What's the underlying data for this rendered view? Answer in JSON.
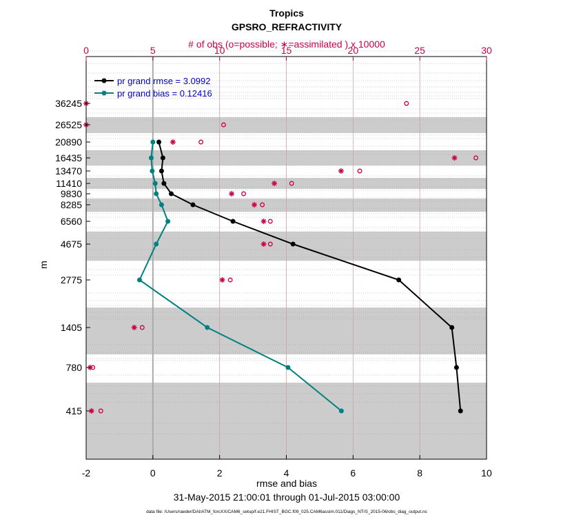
{
  "chart_data": {
    "type": "line",
    "title": "Tropics",
    "subtitle": "GPSRO_REFRACTIVITY",
    "top_axis_label": "# of obs (o=possible; ∗=assimilated ) x 10000",
    "xlabel": "rmse and bias",
    "ylabel": "m",
    "date_range": "31-May-2015 21:00:01 through 01-Jul-2015 03:00:00",
    "footnote": "data file: /Users/raeder/DAI/ATM_forcXX/CAM6_setup/f.e21.FHIST_BGC.f09_025.CAM6assim.011/Diags_NTrS_2015-06/obs_diag_output.nc",
    "xlim": [
      -2,
      10
    ],
    "xticks": [
      "-2",
      "0",
      "2",
      "4",
      "6",
      "8",
      "10"
    ],
    "top_xlim": [
      0,
      30
    ],
    "top_xticks": [
      "0",
      "5",
      "10",
      "15",
      "20",
      "25",
      "30"
    ],
    "y_levels": [
      {
        "label": "36245"
      },
      {
        "label": "26525"
      },
      {
        "label": "20890"
      },
      {
        "label": "16435"
      },
      {
        "label": "13470"
      },
      {
        "label": "11410"
      },
      {
        "label": "9830"
      },
      {
        "label": "8285"
      },
      {
        "label": "6560"
      },
      {
        "label": "4675"
      },
      {
        "label": "2775"
      },
      {
        "label": "1405"
      },
      {
        "label": "780"
      },
      {
        "label": "415"
      }
    ],
    "series": [
      {
        "name": "pr grand rmse = 3.0992",
        "color": "#000000",
        "points": [
          {
            "level": "20890",
            "x": 0.18
          },
          {
            "level": "16435",
            "x": 0.3
          },
          {
            "level": "13470",
            "x": 0.26
          },
          {
            "level": "11410",
            "x": 0.33
          },
          {
            "level": "9830",
            "x": 0.55
          },
          {
            "level": "8285",
            "x": 1.2
          },
          {
            "level": "6560",
            "x": 2.4
          },
          {
            "level": "4675",
            "x": 4.2
          },
          {
            "level": "2775",
            "x": 7.37
          },
          {
            "level": "1405",
            "x": 8.96
          },
          {
            "level": "780",
            "x": 9.1
          },
          {
            "level": "415",
            "x": 9.22
          }
        ]
      },
      {
        "name": "pr grand bias = 0.12416",
        "color": "#008080",
        "points": [
          {
            "level": "20890",
            "x": 0.0
          },
          {
            "level": "16435",
            "x": -0.05
          },
          {
            "level": "13470",
            "x": -0.02
          },
          {
            "level": "11410",
            "x": 0.07
          },
          {
            "level": "9830",
            "x": 0.1
          },
          {
            "level": "8285",
            "x": 0.26
          },
          {
            "level": "6560",
            "x": 0.45
          },
          {
            "level": "4675",
            "x": 0.1
          },
          {
            "level": "2775",
            "x": -0.4
          },
          {
            "level": "1405",
            "x": 1.63
          },
          {
            "level": "780",
            "x": 4.05
          },
          {
            "level": "415",
            "x": 5.65
          }
        ]
      }
    ],
    "obs_counts": {
      "color": "#cc0044",
      "possible": [
        {
          "level": "36245",
          "count": 24.0
        },
        {
          "level": "26525",
          "count": 10.3
        },
        {
          "level": "20890",
          "count": 8.6
        },
        {
          "level": "16435",
          "count": 29.2
        },
        {
          "level": "13470",
          "count": 20.5
        },
        {
          "level": "11410",
          "count": 15.4
        },
        {
          "level": "9830",
          "count": 11.8
        },
        {
          "level": "8285",
          "count": 13.2
        },
        {
          "level": "6560",
          "count": 13.8
        },
        {
          "level": "4675",
          "count": 13.8
        },
        {
          "level": "2775",
          "count": 10.8
        },
        {
          "level": "1405",
          "count": 4.2
        },
        {
          "level": "780",
          "count": 0.5
        },
        {
          "level": "415",
          "count": 1.1
        }
      ],
      "assimilated": [
        {
          "level": "36245",
          "count": 0.0
        },
        {
          "level": "26525",
          "count": 0.0
        },
        {
          "level": "20890",
          "count": 6.5
        },
        {
          "level": "16435",
          "count": 27.6
        },
        {
          "level": "13470",
          "count": 19.1
        },
        {
          "level": "11410",
          "count": 14.1
        },
        {
          "level": "9830",
          "count": 10.9
        },
        {
          "level": "8285",
          "count": 12.6
        },
        {
          "level": "6560",
          "count": 13.3
        },
        {
          "level": "4675",
          "count": 13.3
        },
        {
          "level": "2775",
          "count": 10.2
        },
        {
          "level": "1405",
          "count": 3.6
        },
        {
          "level": "780",
          "count": 0.3
        },
        {
          "level": "415",
          "count": 0.4
        }
      ]
    },
    "grid": true,
    "legend": "top-left"
  }
}
